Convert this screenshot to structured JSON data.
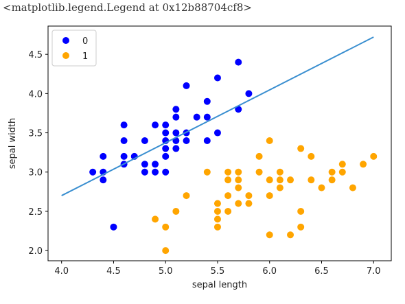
{
  "output_text": "<matplotlib.legend.Legend at 0x12b88704cf8>",
  "chart_data": {
    "type": "scatter",
    "xlabel": "sepal length",
    "ylabel": "sepal width",
    "xlim": [
      3.87,
      7.17
    ],
    "ylim": [
      1.87,
      4.86
    ],
    "xticks": [
      4.0,
      4.5,
      5.0,
      5.5,
      6.0,
      6.5,
      7.0
    ],
    "yticks": [
      2.0,
      2.5,
      3.0,
      3.5,
      4.0,
      4.5
    ],
    "legend_position": "top-left",
    "series": [
      {
        "name": "0",
        "color": "#0000ff",
        "points": [
          [
            4.3,
            3.0
          ],
          [
            4.4,
            3.2
          ],
          [
            4.4,
            3.0
          ],
          [
            4.4,
            2.9
          ],
          [
            4.5,
            2.3
          ],
          [
            4.6,
            3.6
          ],
          [
            4.6,
            3.4
          ],
          [
            4.6,
            3.2
          ],
          [
            4.6,
            3.1
          ],
          [
            4.7,
            3.2
          ],
          [
            4.8,
            3.4
          ],
          [
            4.8,
            3.1
          ],
          [
            4.8,
            3.0
          ],
          [
            4.9,
            3.6
          ],
          [
            4.9,
            3.1
          ],
          [
            4.9,
            3.0
          ],
          [
            5.0,
            3.6
          ],
          [
            5.0,
            3.5
          ],
          [
            5.0,
            3.4
          ],
          [
            5.0,
            3.3
          ],
          [
            5.0,
            3.2
          ],
          [
            5.0,
            3.0
          ],
          [
            5.1,
            3.8
          ],
          [
            5.1,
            3.7
          ],
          [
            5.1,
            3.5
          ],
          [
            5.1,
            3.4
          ],
          [
            5.1,
            3.3
          ],
          [
            5.2,
            4.1
          ],
          [
            5.2,
            3.5
          ],
          [
            5.2,
            3.4
          ],
          [
            5.3,
            3.7
          ],
          [
            5.4,
            3.9
          ],
          [
            5.4,
            3.7
          ],
          [
            5.4,
            3.4
          ],
          [
            5.5,
            4.2
          ],
          [
            5.5,
            3.5
          ],
          [
            5.7,
            4.4
          ],
          [
            5.7,
            3.8
          ],
          [
            5.8,
            4.0
          ]
        ]
      },
      {
        "name": "1",
        "color": "#ffa500",
        "points": [
          [
            4.9,
            2.4
          ],
          [
            5.0,
            2.3
          ],
          [
            5.0,
            2.0
          ],
          [
            5.1,
            2.5
          ],
          [
            5.2,
            2.7
          ],
          [
            5.4,
            3.0
          ],
          [
            5.5,
            2.6
          ],
          [
            5.5,
            2.5
          ],
          [
            5.5,
            2.4
          ],
          [
            5.5,
            2.3
          ],
          [
            5.6,
            3.0
          ],
          [
            5.6,
            2.9
          ],
          [
            5.6,
            2.7
          ],
          [
            5.6,
            2.5
          ],
          [
            5.7,
            3.0
          ],
          [
            5.7,
            2.9
          ],
          [
            5.7,
            2.8
          ],
          [
            5.7,
            2.6
          ],
          [
            5.8,
            2.7
          ],
          [
            5.8,
            2.6
          ],
          [
            5.9,
            3.2
          ],
          [
            5.9,
            3.0
          ],
          [
            6.0,
            3.4
          ],
          [
            6.0,
            2.9
          ],
          [
            6.0,
            2.7
          ],
          [
            6.0,
            2.2
          ],
          [
            6.1,
            3.0
          ],
          [
            6.1,
            2.9
          ],
          [
            6.1,
            2.8
          ],
          [
            6.2,
            2.9
          ],
          [
            6.2,
            2.2
          ],
          [
            6.3,
            3.3
          ],
          [
            6.3,
            2.5
          ],
          [
            6.3,
            2.3
          ],
          [
            6.4,
            3.2
          ],
          [
            6.4,
            2.9
          ],
          [
            6.5,
            2.8
          ],
          [
            6.6,
            3.0
          ],
          [
            6.6,
            2.9
          ],
          [
            6.7,
            3.1
          ],
          [
            6.7,
            3.0
          ],
          [
            6.8,
            2.8
          ],
          [
            6.9,
            3.1
          ],
          [
            7.0,
            3.2
          ]
        ]
      }
    ],
    "line": {
      "color": "#3a8fd0",
      "points": [
        [
          4.0,
          2.7
        ],
        [
          7.0,
          4.72
        ]
      ]
    }
  }
}
